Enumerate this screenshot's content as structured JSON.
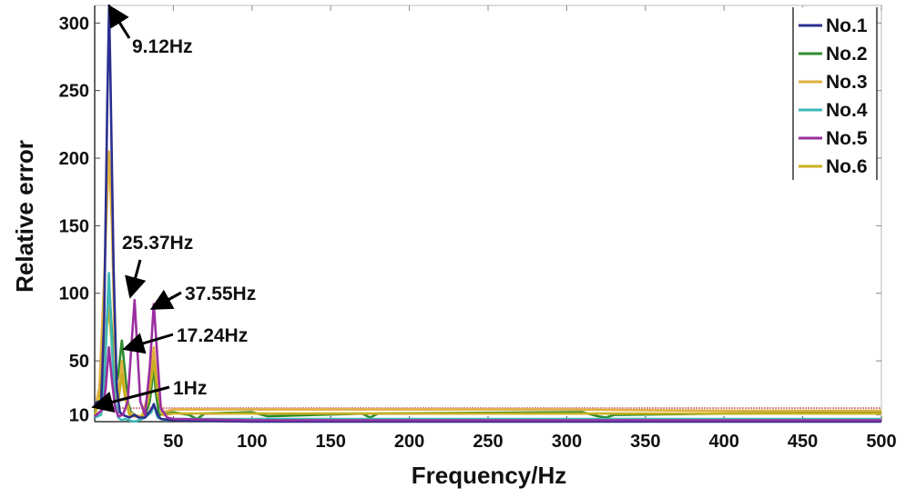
{
  "chart_data": {
    "type": "line",
    "title": "",
    "xlabel": "Frequency/Hz",
    "ylabel": "Relative error",
    "xlim": [
      0,
      500
    ],
    "ylim": [
      5,
      313
    ],
    "xticks": [
      50,
      100,
      150,
      200,
      250,
      300,
      350,
      400,
      450,
      500
    ],
    "yticks": [
      10,
      50,
      100,
      150,
      200,
      250,
      300
    ],
    "grid": false,
    "legend_position": "top-right",
    "reference_line": {
      "y": 15,
      "color": "#d98a8a"
    },
    "series": [
      {
        "name": "No.1",
        "color": "#2b2f8f",
        "x": [
          0,
          2,
          4,
          6,
          8,
          9.12,
          10,
          12,
          14,
          16,
          18,
          20,
          22,
          25.37,
          28,
          32,
          36,
          37.55,
          40,
          42,
          50,
          100,
          200,
          300,
          400,
          500
        ],
        "y": [
          18,
          20,
          15,
          80,
          240,
          313,
          260,
          120,
          30,
          12,
          10,
          9,
          8,
          10,
          8,
          8,
          14,
          18,
          10,
          7,
          6,
          5,
          5,
          5,
          5,
          5
        ]
      },
      {
        "name": "No.2",
        "color": "#2e8b2e",
        "x": [
          0,
          4,
          7,
          9,
          11,
          13,
          15,
          17.24,
          19,
          21,
          23,
          27,
          32,
          35,
          37.55,
          39,
          41,
          50,
          60,
          65,
          70,
          100,
          110,
          170,
          175,
          180,
          305,
          310,
          320,
          325,
          330,
          400,
          500
        ],
        "y": [
          12,
          20,
          60,
          110,
          70,
          30,
          40,
          65,
          45,
          20,
          12,
          9,
          9,
          20,
          45,
          25,
          10,
          12,
          10,
          7,
          11,
          12,
          9,
          11,
          8,
          11,
          12,
          12,
          9,
          8,
          10,
          11,
          12
        ]
      },
      {
        "name": "No.3",
        "color": "#e0b040",
        "x": [
          0,
          3,
          6,
          9,
          11,
          13,
          15,
          17.24,
          19,
          22,
          25,
          30,
          34,
          37.55,
          40,
          43,
          50,
          100,
          200,
          300,
          400,
          500
        ],
        "y": [
          14,
          30,
          110,
          205,
          150,
          45,
          25,
          50,
          30,
          12,
          10,
          9,
          25,
          60,
          30,
          12,
          14,
          14,
          14,
          14,
          13,
          13
        ]
      },
      {
        "name": "No.4",
        "color": "#40b8b8",
        "x": [
          0,
          4,
          6,
          9,
          11,
          13,
          15,
          17.24,
          19,
          22,
          25,
          28,
          32,
          36,
          37.55,
          40,
          45,
          50,
          100,
          200,
          300,
          400,
          500
        ],
        "y": [
          8,
          10,
          30,
          115,
          60,
          20,
          8,
          6,
          7,
          6,
          5,
          6,
          8,
          12,
          18,
          8,
          6,
          7,
          7,
          7,
          7,
          7,
          7
        ]
      },
      {
        "name": "No.5",
        "color": "#9a2fa0",
        "x": [
          0,
          5,
          7,
          9,
          11,
          13,
          15,
          18,
          21,
          23,
          25.37,
          27,
          29,
          32,
          35,
          37.55,
          40,
          42,
          46,
          50,
          100,
          200,
          300,
          400,
          500
        ],
        "y": [
          9,
          14,
          30,
          60,
          35,
          15,
          9,
          10,
          20,
          55,
          95,
          60,
          20,
          10,
          45,
          92,
          50,
          15,
          8,
          7,
          6,
          6,
          6,
          6,
          6
        ]
      },
      {
        "name": "No.6",
        "color": "#c8b020",
        "x": [
          0,
          3,
          6,
          9,
          11,
          13,
          15,
          17.24,
          19,
          22,
          25,
          30,
          34,
          37.55,
          40,
          43,
          50,
          100,
          200,
          300,
          400,
          500
        ],
        "y": [
          10,
          20,
          55,
          90,
          60,
          25,
          20,
          40,
          25,
          10,
          9,
          8,
          20,
          50,
          25,
          10,
          11,
          11,
          11,
          11,
          11,
          11
        ]
      }
    ],
    "annotations": [
      {
        "text": "9.12Hz",
        "x": 9.12,
        "y": 313
      },
      {
        "text": "25.37Hz",
        "x": 25.37,
        "y": 95
      },
      {
        "text": "37.55Hz",
        "x": 37.55,
        "y": 92
      },
      {
        "text": "17.24Hz",
        "x": 17.24,
        "y": 55
      },
      {
        "text": "1Hz",
        "x": 1,
        "y": 15
      }
    ]
  }
}
